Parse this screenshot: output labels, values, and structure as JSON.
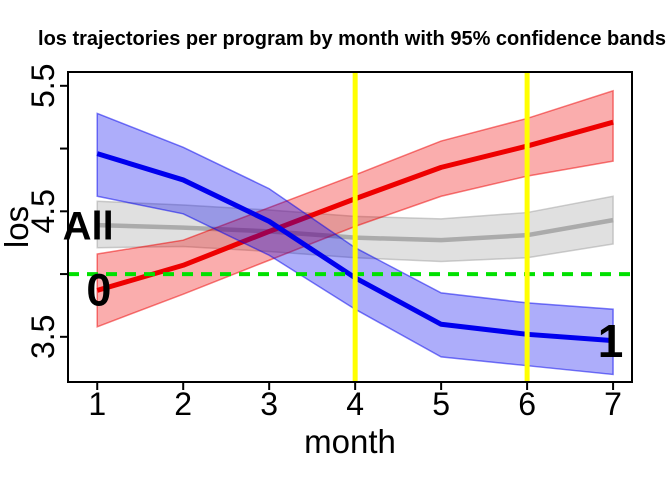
{
  "chart_data": {
    "type": "line",
    "title": "los trajectories per program by month with 95% confidence bands",
    "xlabel": "month",
    "ylabel": "los",
    "x": [
      1,
      2,
      3,
      4,
      5,
      6,
      7
    ],
    "xlim": [
      0.66,
      7.22
    ],
    "ylim": [
      3.14,
      5.61
    ],
    "grid": "off",
    "legend": "none",
    "x_ticks": [
      {
        "v": 1,
        "label": "1"
      },
      {
        "v": 2,
        "label": "2"
      },
      {
        "v": 3,
        "label": "3"
      },
      {
        "v": 4,
        "label": "4"
      },
      {
        "v": 5,
        "label": "5"
      },
      {
        "v": 6,
        "label": "6"
      },
      {
        "v": 7,
        "label": "7"
      }
    ],
    "y_ticks": [
      {
        "v": 3.5,
        "label": "3.5"
      },
      {
        "v": 4.0,
        "label": ""
      },
      {
        "v": 4.5,
        "label": "4.5"
      },
      {
        "v": 5.0,
        "label": ""
      },
      {
        "v": 5.5,
        "label": "5.5"
      }
    ],
    "series": [
      {
        "key": "all",
        "name": "All",
        "color": "#ABABAB",
        "band_color": "rgba(130,130,130,0.25)",
        "band_edge": "rgba(160,160,160,0.5)",
        "line_width": 4.5,
        "values": [
          4.39,
          4.37,
          4.34,
          4.29,
          4.27,
          4.31,
          4.43
        ],
        "upper": [
          4.58,
          4.55,
          4.51,
          4.46,
          4.44,
          4.49,
          4.62
        ],
        "lower": [
          4.21,
          4.22,
          4.18,
          4.13,
          4.1,
          4.13,
          4.24
        ]
      },
      {
        "key": "program-0",
        "name": "0",
        "color": "#EE0000",
        "band_color": "rgba(238,0,0,0.32)",
        "band_edge": "rgba(238,0,0,0.5)",
        "line_width": 5,
        "values": [
          3.87,
          4.07,
          4.34,
          4.6,
          4.85,
          5.02,
          5.21
        ],
        "upper": [
          4.16,
          4.27,
          4.53,
          4.79,
          5.06,
          5.24,
          5.46
        ],
        "lower": [
          3.58,
          3.84,
          4.11,
          4.38,
          4.62,
          4.78,
          4.9
        ]
      },
      {
        "key": "program-1",
        "name": "1",
        "color": "#0000EE",
        "band_color": "rgba(0,0,238,0.32)",
        "band_edge": "rgba(0,0,238,0.5)",
        "line_width": 5,
        "values": [
          4.96,
          4.75,
          4.42,
          3.97,
          3.6,
          3.52,
          3.47
        ],
        "upper": [
          5.28,
          5.01,
          4.68,
          4.21,
          3.85,
          3.77,
          3.72
        ],
        "lower": [
          4.62,
          4.48,
          4.15,
          3.72,
          3.34,
          3.27,
          3.2
        ]
      }
    ],
    "reference_lines": {
      "horizontal": {
        "y": 4.0,
        "color": "#00E000",
        "width": 4,
        "dash": "11 8"
      },
      "vertical": [
        {
          "x": 4,
          "color": "#FFFF00",
          "width": 5
        },
        {
          "x": 6,
          "color": "#FFFF00",
          "width": 5
        }
      ]
    },
    "annotations": [
      {
        "text": "All",
        "x": 0.895,
        "y": 4.39,
        "size": 40,
        "color": "#A9A9A9"
      },
      {
        "text": "0",
        "x": 1.02,
        "y": 3.88,
        "size": 45,
        "color": "#EE0000"
      },
      {
        "text": "1",
        "x": 6.97,
        "y": 3.47,
        "size": 46,
        "color": "#0000EE"
      }
    ]
  }
}
